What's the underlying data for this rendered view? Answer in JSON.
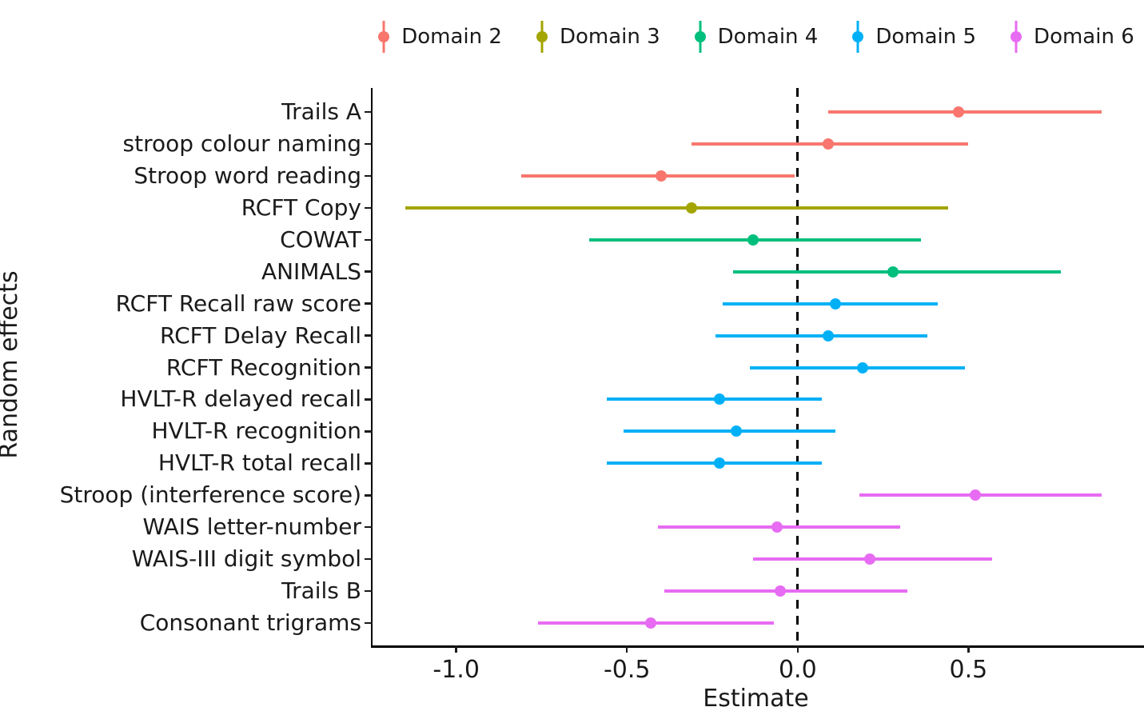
{
  "chart_data": {
    "type": "pointrange",
    "orientation": "horizontal",
    "title": "",
    "xlabel": "Estimate",
    "ylabel": "Random effects",
    "xlim": [
      -1.245,
      1.0
    ],
    "x_tick_values": [
      -1.0,
      -0.5,
      0.0,
      0.5
    ],
    "x_tick_labels": [
      "-1.0",
      "-0.5",
      "0.0",
      "0.5"
    ],
    "grid": false,
    "background": "#ffffff",
    "reference_line": {
      "x": 0.0,
      "style": "dashed",
      "color": "#000000"
    },
    "legend": {
      "position": "top",
      "entries": [
        {
          "label": "Domain 2",
          "color": "#F8766D"
        },
        {
          "label": "Domain 3",
          "color": "#A3A500"
        },
        {
          "label": "Domain 4",
          "color": "#00BF7D"
        },
        {
          "label": "Domain 5",
          "color": "#00B0F6"
        },
        {
          "label": "Domain 6",
          "color": "#E76BF3"
        }
      ]
    },
    "rows": [
      {
        "label": "Trails A",
        "domain": "Domain 2",
        "estimate": 0.47,
        "ci_low": 0.09,
        "ci_high": 0.89
      },
      {
        "label": "stroop colour naming",
        "domain": "Domain 2",
        "estimate": 0.09,
        "ci_low": -0.31,
        "ci_high": 0.5
      },
      {
        "label": "Stroop word reading",
        "domain": "Domain 2",
        "estimate": -0.4,
        "ci_low": -0.81,
        "ci_high": -0.01
      },
      {
        "label": "RCFT Copy",
        "domain": "Domain 3",
        "estimate": -0.31,
        "ci_low": -1.15,
        "ci_high": 0.44
      },
      {
        "label": "COWAT",
        "domain": "Domain 4",
        "estimate": -0.13,
        "ci_low": -0.61,
        "ci_high": 0.36
      },
      {
        "label": "ANIMALS",
        "domain": "Domain 4",
        "estimate": 0.28,
        "ci_low": -0.19,
        "ci_high": 0.77
      },
      {
        "label": "RCFT Recall raw score",
        "domain": "Domain 5",
        "estimate": 0.11,
        "ci_low": -0.22,
        "ci_high": 0.41
      },
      {
        "label": "RCFT Delay Recall",
        "domain": "Domain 5",
        "estimate": 0.09,
        "ci_low": -0.24,
        "ci_high": 0.38
      },
      {
        "label": "RCFT Recognition",
        "domain": "Domain 5",
        "estimate": 0.19,
        "ci_low": -0.14,
        "ci_high": 0.49
      },
      {
        "label": "HVLT-R delayed recall",
        "domain": "Domain 5",
        "estimate": -0.23,
        "ci_low": -0.56,
        "ci_high": 0.07
      },
      {
        "label": "HVLT-R recognition",
        "domain": "Domain 5",
        "estimate": -0.18,
        "ci_low": -0.51,
        "ci_high": 0.11
      },
      {
        "label": "HVLT-R total recall",
        "domain": "Domain 5",
        "estimate": -0.23,
        "ci_low": -0.56,
        "ci_high": 0.07
      },
      {
        "label": "Stroop (interference score)",
        "domain": "Domain 6",
        "estimate": 0.52,
        "ci_low": 0.18,
        "ci_high": 0.89
      },
      {
        "label": "WAIS letter-number",
        "domain": "Domain 6",
        "estimate": -0.06,
        "ci_low": -0.41,
        "ci_high": 0.3
      },
      {
        "label": "WAIS-III digit symbol",
        "domain": "Domain 6",
        "estimate": 0.21,
        "ci_low": -0.13,
        "ci_high": 0.57
      },
      {
        "label": "Trails B",
        "domain": "Domain 6",
        "estimate": -0.05,
        "ci_low": -0.39,
        "ci_high": 0.32
      },
      {
        "label": "Consonant trigrams",
        "domain": "Domain 6",
        "estimate": -0.43,
        "ci_low": -0.76,
        "ci_high": -0.07
      }
    ]
  }
}
